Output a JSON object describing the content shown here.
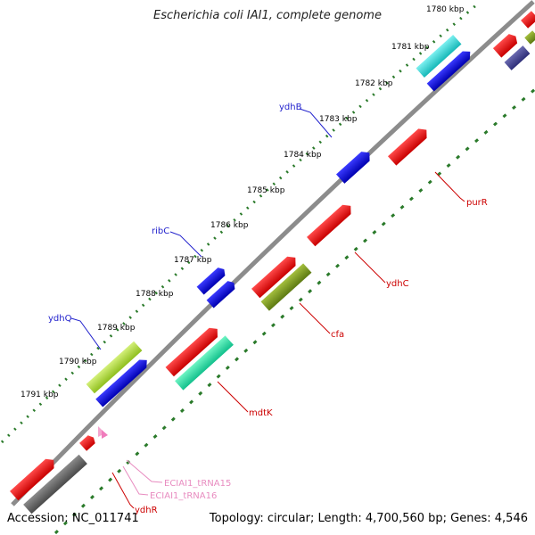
{
  "title": "Escherichia coli IAI1, complete genome",
  "footer": {
    "accession": "Accession: NC_011741",
    "summary": "Topology: circular; Length: 4,700,560 bp; Genes: 4,546"
  },
  "ticks": [
    "1780 kbp",
    "1781 kbp",
    "1782 kbp",
    "1783 kbp",
    "1784 kbp",
    "1785 kbp",
    "1786 kbp",
    "1787 kbp",
    "1788 kbp",
    "1789 kbp",
    "1790 kbp",
    "1791 kbp"
  ],
  "gene_labels": {
    "ydhB": "ydhB",
    "ribC": "ribC",
    "ydhQ": "ydhQ",
    "purR": "purR",
    "ydhC": "ydhC",
    "cfa": "cfa",
    "mdtK": "mdtK",
    "ydhR": "ydhR",
    "trna15": "ECIAI1_tRNA15",
    "trna16": "ECIAI1_tRNA16"
  },
  "colors": {
    "blue_label": "#1f1fcc",
    "red_label": "#cc0000",
    "pink_label": "#e88cc0",
    "backbone": "#8c8c8c",
    "tick_green": "#2a7a2a"
  }
}
